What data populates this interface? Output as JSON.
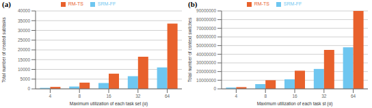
{
  "chart_data": [
    {
      "type": "bar",
      "title": "(a)",
      "categories": [
        4,
        8,
        16,
        32,
        64
      ],
      "series": [
        {
          "name": "SRM-FF",
          "color": "#6EC6F0",
          "values": [
            500,
            1200,
            3000,
            6500,
            11000
          ]
        },
        {
          "name": "RM-TS",
          "color": "#E8612C",
          "values": [
            1000,
            3200,
            7800,
            16500,
            33500
          ]
        }
      ],
      "xlabel": "Maximum  utilization  of each task set (α)",
      "ylabel": "Total number of created subtasks",
      "ylim": [
        0,
        40000
      ],
      "yticks": [
        0,
        5000,
        10000,
        15000,
        20000,
        25000,
        30000,
        35000,
        40000
      ],
      "grid": true,
      "legend": "top"
    },
    {
      "type": "bar",
      "title": "(b)",
      "categories": [
        4,
        8,
        16,
        32,
        64
      ],
      "series": [
        {
          "name": "SRM-FF",
          "color": "#6EC6F0",
          "values": [
            1500000,
            5500000,
            11000000,
            23000000,
            48000000
          ]
        },
        {
          "name": "RM-TS",
          "color": "#E8612C",
          "values": [
            2000000,
            10000000,
            21000000,
            45000000,
            90000000
          ]
        }
      ],
      "xlabel": "Maximum  utilization  of each task st (α)",
      "ylabel": "Total number of context switches",
      "ylim": [
        0,
        90000000
      ],
      "yticks": [
        0,
        10000000,
        20000000,
        30000000,
        40000000,
        50000000,
        60000000,
        70000000,
        80000000,
        90000000
      ],
      "grid": true,
      "legend": "top"
    }
  ]
}
